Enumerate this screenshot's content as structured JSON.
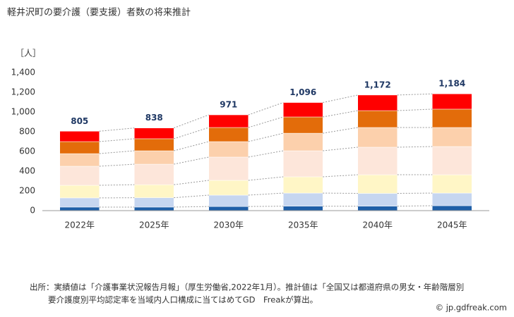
{
  "chart_data": {
    "type": "stacked_bar",
    "title": "軽井沢町の要介護（要支援）者数の将来推計",
    "y_unit": "［人］",
    "categories": [
      "2022年",
      "2025年",
      "2030年",
      "2035年",
      "2040年",
      "2045年"
    ],
    "series": [
      {
        "color": "#1f5fa8",
        "values": [
          36,
          36,
          42,
          45,
          45,
          50
        ]
      },
      {
        "color": "#c6d6f0",
        "values": [
          93,
          95,
          115,
          133,
          130,
          128
        ]
      },
      {
        "color": "#fff6c6",
        "values": [
          128,
          132,
          150,
          165,
          189,
          186
        ]
      },
      {
        "color": "#fde6da",
        "values": [
          193,
          208,
          236,
          264,
          279,
          286
        ]
      },
      {
        "color": "#fcd0ac",
        "values": [
          128,
          136,
          157,
          178,
          200,
          193
        ]
      },
      {
        "color": "#e36c0a",
        "values": [
          122,
          122,
          143,
          165,
          171,
          186
        ]
      },
      {
        "color": "#ff0000",
        "values": [
          105,
          109,
          128,
          146,
          158,
          155
        ]
      }
    ],
    "totals": [
      805,
      838,
      971,
      1096,
      1172,
      1184
    ],
    "total_labels": [
      "805",
      "838",
      "971",
      "1,096",
      "1,172",
      "1,184"
    ],
    "ylim": [
      0,
      1400
    ],
    "yticks": [
      0,
      200,
      400,
      600,
      800,
      {
        "value": 1000,
        "label": "1,000"
      },
      {
        "value": 1200,
        "label": "1,200"
      },
      {
        "value": 1400,
        "label": "1,400"
      }
    ],
    "grid": false,
    "connectors": true,
    "footnote": [
      "出所：実績値は「介護事業状況報告月報」（厚生労働省,2022年1月）。推計値は「全国又は都道府県の男女・年齢階層別",
      "要介護度別平均認定率を当域内人口構成に当てはめてGD　Freakが算出。"
    ],
    "credit": "© jp.gdfreak.com"
  }
}
